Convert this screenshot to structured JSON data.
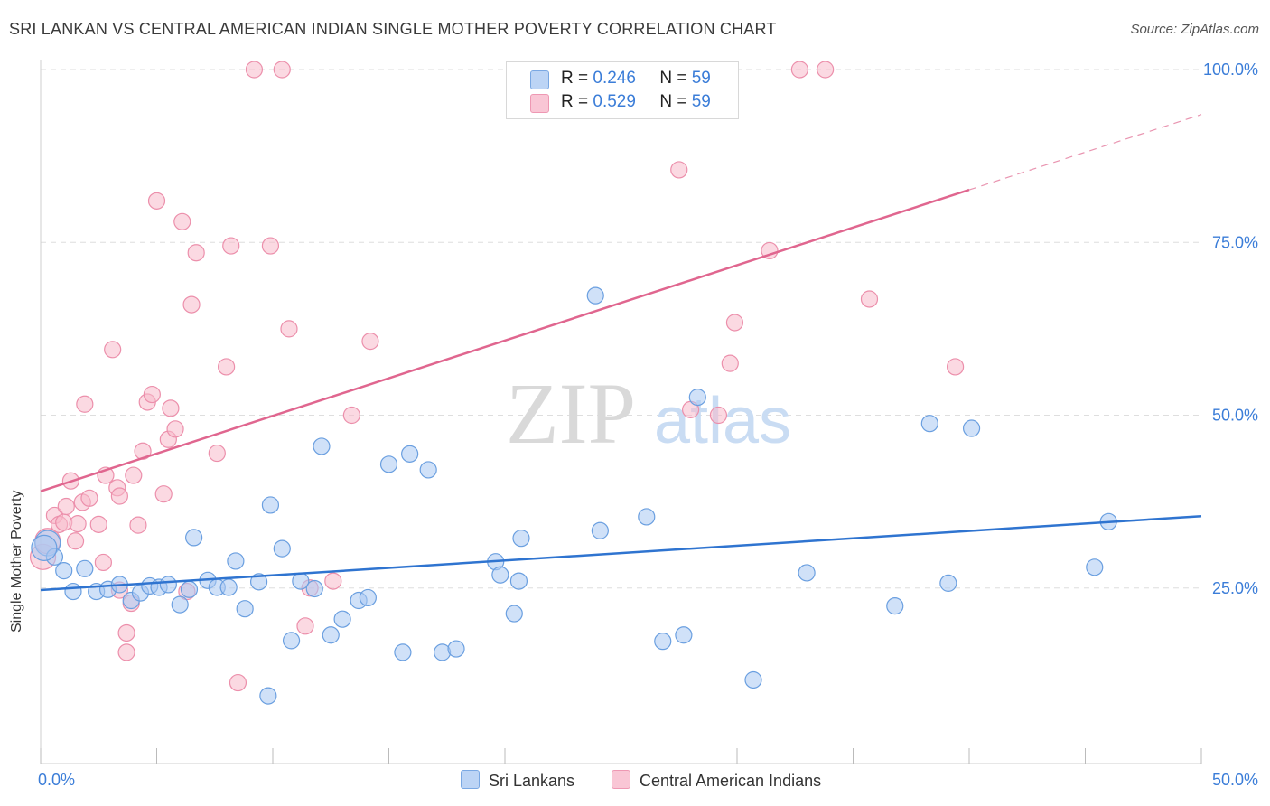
{
  "title": "SRI LANKAN VS CENTRAL AMERICAN INDIAN SINGLE MOTHER POVERTY CORRELATION CHART",
  "source": "Source: ZipAtlas.com",
  "watermark": {
    "zip": "ZIP",
    "atlas": "atlas"
  },
  "legend": {
    "rows": [
      {
        "r_label": "R =",
        "r_value": "0.246",
        "n_label": "N =",
        "n_value": "59"
      },
      {
        "r_label": "R =",
        "r_value": "0.529",
        "n_label": "N =",
        "n_value": "59"
      }
    ]
  },
  "bottom_legend": {
    "series1": "Sri Lankans",
    "series2": "Central American Indians"
  },
  "colors": {
    "blue_fill": "#a9c8f2",
    "blue_stroke": "#6a9fe0",
    "blue_line": "#2f74d0",
    "pink_fill": "#f7b9cb",
    "pink_stroke": "#ec8fab",
    "pink_line": "#e0668f",
    "axis_text": "#3b7dd8",
    "grid": "#dedede"
  },
  "chart_data": {
    "type": "scatter",
    "title": "SRI LANKAN VS CENTRAL AMERICAN INDIAN SINGLE MOTHER POVERTY CORRELATION CHART",
    "xlabel": "",
    "ylabel": "Single Mother Poverty",
    "xlim": [
      0,
      50
    ],
    "ylim": [
      0,
      100
    ],
    "x_tick_labels": [
      "0.0%",
      "50.0%"
    ],
    "y_ticks": [
      25,
      50,
      75,
      100
    ],
    "y_tick_labels": [
      "25.0%",
      "50.0%",
      "75.0%",
      "100.0%"
    ],
    "series": [
      {
        "name": "Sri Lankans",
        "r": 0.246,
        "n": 59,
        "trend": {
          "x": [
            0,
            50
          ],
          "y": [
            24.7,
            35.4
          ],
          "dash_from": null
        },
        "points": [
          [
            0.3,
            31.5
          ],
          [
            0.6,
            29.5
          ],
          [
            1.0,
            27.5
          ],
          [
            1.4,
            24.5
          ],
          [
            1.9,
            27.8
          ],
          [
            2.4,
            24.5
          ],
          [
            2.9,
            24.8
          ],
          [
            3.4,
            25.5
          ],
          [
            3.9,
            23.2
          ],
          [
            4.3,
            24.3
          ],
          [
            4.7,
            25.3
          ],
          [
            5.1,
            25.1
          ],
          [
            5.5,
            25.5
          ],
          [
            6.0,
            22.6
          ],
          [
            6.4,
            24.8
          ],
          [
            6.6,
            32.3
          ],
          [
            7.2,
            26.1
          ],
          [
            7.6,
            25.1
          ],
          [
            8.1,
            25.1
          ],
          [
            8.4,
            28.9
          ],
          [
            8.8,
            22.0
          ],
          [
            9.4,
            25.9
          ],
          [
            9.8,
            9.4
          ],
          [
            9.9,
            37.0
          ],
          [
            10.4,
            30.7
          ],
          [
            10.8,
            17.4
          ],
          [
            11.2,
            26.0
          ],
          [
            11.8,
            24.9
          ],
          [
            12.1,
            45.5
          ],
          [
            12.5,
            18.2
          ],
          [
            13.0,
            20.5
          ],
          [
            13.7,
            23.2
          ],
          [
            14.1,
            23.6
          ],
          [
            15.0,
            42.9
          ],
          [
            15.6,
            15.7
          ],
          [
            15.9,
            44.4
          ],
          [
            16.7,
            42.1
          ],
          [
            17.3,
            15.7
          ],
          [
            17.9,
            16.2
          ],
          [
            19.6,
            28.8
          ],
          [
            19.8,
            26.9
          ],
          [
            20.4,
            21.3
          ],
          [
            20.6,
            26.0
          ],
          [
            20.7,
            32.2
          ],
          [
            23.9,
            67.3
          ],
          [
            24.1,
            33.3
          ],
          [
            26.1,
            35.3
          ],
          [
            26.8,
            17.3
          ],
          [
            27.7,
            18.2
          ],
          [
            28.3,
            52.6
          ],
          [
            30.7,
            11.7
          ],
          [
            33.0,
            27.2
          ],
          [
            36.8,
            22.4
          ],
          [
            38.3,
            48.8
          ],
          [
            39.1,
            25.7
          ],
          [
            40.1,
            48.1
          ],
          [
            45.4,
            28.0
          ],
          [
            46.0,
            34.6
          ],
          [
            0.15,
            30.8
          ]
        ]
      },
      {
        "name": "Central American Indians",
        "r": 0.529,
        "n": 59,
        "trend": {
          "x": [
            0,
            50
          ],
          "y": [
            39.0,
            93.5
          ],
          "dash_from": 40.0
        },
        "points": [
          [
            0.1,
            29.5
          ],
          [
            0.3,
            31.8
          ],
          [
            0.6,
            35.5
          ],
          [
            0.8,
            34.2
          ],
          [
            1.0,
            34.5
          ],
          [
            1.1,
            36.8
          ],
          [
            1.3,
            40.5
          ],
          [
            1.5,
            31.8
          ],
          [
            1.6,
            34.3
          ],
          [
            1.8,
            37.4
          ],
          [
            1.9,
            51.6
          ],
          [
            2.1,
            38.0
          ],
          [
            2.5,
            34.2
          ],
          [
            2.7,
            28.7
          ],
          [
            2.8,
            41.3
          ],
          [
            3.1,
            59.5
          ],
          [
            3.3,
            39.5
          ],
          [
            3.4,
            38.3
          ],
          [
            3.4,
            24.7
          ],
          [
            3.7,
            18.5
          ],
          [
            3.7,
            15.7
          ],
          [
            3.9,
            22.8
          ],
          [
            4.0,
            41.3
          ],
          [
            4.2,
            34.1
          ],
          [
            4.4,
            44.8
          ],
          [
            4.6,
            51.9
          ],
          [
            4.8,
            53.0
          ],
          [
            5.0,
            81.0
          ],
          [
            5.3,
            38.6
          ],
          [
            5.5,
            46.5
          ],
          [
            5.6,
            51.0
          ],
          [
            5.8,
            48.0
          ],
          [
            6.1,
            78.0
          ],
          [
            6.5,
            66.0
          ],
          [
            6.7,
            73.5
          ],
          [
            7.6,
            44.5
          ],
          [
            8.0,
            57.0
          ],
          [
            8.2,
            74.5
          ],
          [
            8.5,
            11.3
          ],
          [
            9.2,
            100.0
          ],
          [
            9.9,
            74.5
          ],
          [
            10.4,
            100.0
          ],
          [
            10.7,
            62.5
          ],
          [
            11.4,
            19.5
          ],
          [
            12.6,
            26.0
          ],
          [
            13.4,
            50.0
          ],
          [
            14.2,
            60.7
          ],
          [
            27.5,
            85.5
          ],
          [
            28.0,
            50.8
          ],
          [
            29.2,
            50.0
          ],
          [
            29.7,
            57.5
          ],
          [
            29.9,
            63.4
          ],
          [
            31.4,
            73.8
          ],
          [
            32.7,
            100.0
          ],
          [
            33.8,
            100.0
          ],
          [
            35.7,
            66.8
          ],
          [
            39.4,
            57.0
          ],
          [
            6.3,
            24.5
          ],
          [
            11.6,
            25.0
          ]
        ]
      }
    ]
  }
}
